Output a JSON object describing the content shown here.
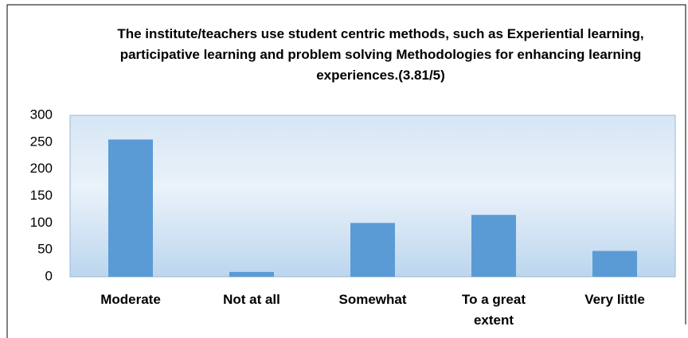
{
  "chart_data": {
    "type": "bar",
    "title": "The institute/teachers use student centric methods, such as Experiential learning, participative learning and problem solving Methodologies for enhancing learning experiences.(3.81/5)",
    "categories": [
      "Moderate",
      "Not at all",
      "Somewhat",
      "To a great extent",
      "Very little"
    ],
    "values": [
      255,
      9,
      100,
      115,
      48
    ],
    "color": "#5b9bd5",
    "ylim": [
      0,
      300
    ],
    "yticks": [
      0,
      50,
      100,
      150,
      200,
      250,
      300
    ],
    "grid": false
  }
}
